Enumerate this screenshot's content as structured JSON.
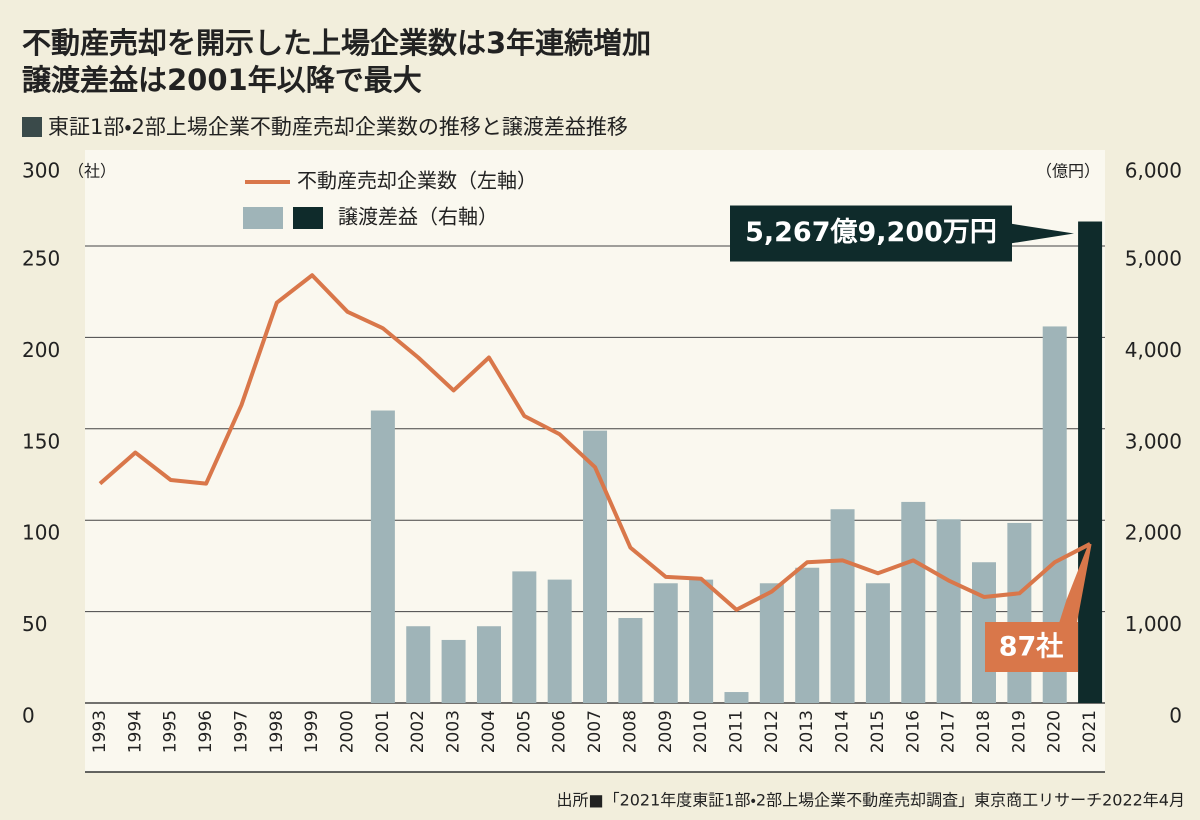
{
  "chart_data": {
    "type": "bar_line",
    "title": [
      "不動産売却を開示した上場企業数は3年連続増加",
      "譲渡差益は2001年以降で最大"
    ],
    "subtitle": "東証1部・2部上場企業不動産売却企業数の推移と譲渡差益推移",
    "y_unit": "（社）",
    "y2_unit": "（億円）",
    "source": "出所■「2021年度東証1部・2部上場企業不動産売却調査」東京商工リサーチ2022年4月",
    "categories": [
      "1993",
      "1994",
      "1995",
      "1996",
      "1997",
      "1998",
      "1999",
      "2000",
      "2001",
      "2002",
      "2003",
      "2004",
      "2005",
      "2006",
      "2007",
      "2008",
      "2009",
      "2010",
      "2011",
      "2012",
      "2013",
      "2014",
      "2015",
      "2016",
      "2017",
      "2018",
      "2019",
      "2020",
      "2021"
    ],
    "series": [
      {
        "name": "譲渡差益（右軸）",
        "type": "bar",
        "axis": "y2",
        "color": "#9fb4b8",
        "highlight_color": "#0f2b2b",
        "values": [
          null,
          null,
          null,
          null,
          null,
          null,
          null,
          null,
          3200,
          840,
          690,
          840,
          1440,
          1350,
          2980,
          930,
          1310,
          1350,
          120,
          1310,
          1480,
          2120,
          1310,
          2200,
          2010,
          1540,
          1970,
          4120,
          5267.92
        ],
        "value_labels": [
          null,
          null,
          null,
          null,
          null,
          null,
          null,
          null,
          null,
          null,
          null,
          null,
          null,
          null,
          null,
          null,
          null,
          null,
          null,
          null,
          null,
          null,
          null,
          null,
          null,
          null,
          null,
          null,
          "5,267億9,200万円"
        ]
      },
      {
        "name": "不動産売却企業数（左軸）",
        "type": "line",
        "color": "#d9774a",
        "values": [
          120,
          137,
          122,
          120,
          163,
          219,
          234,
          214,
          205,
          189,
          171,
          189,
          157,
          147,
          129,
          85,
          69,
          68,
          51,
          61,
          77,
          78,
          71,
          78,
          67,
          58,
          60,
          77,
          87
        ],
        "value_labels": [
          null,
          null,
          null,
          null,
          null,
          null,
          null,
          null,
          null,
          null,
          null,
          null,
          null,
          null,
          null,
          null,
          null,
          null,
          null,
          null,
          null,
          null,
          null,
          null,
          null,
          null,
          null,
          null,
          "87社"
        ]
      }
    ],
    "ylim": [
      0,
      300
    ],
    "yticks": [
      0,
      50,
      100,
      150,
      200,
      250,
      300
    ],
    "y2lim": [
      0,
      6000
    ],
    "y2ticks": [
      0,
      {
        "value": 1000,
        "label": "1,000"
      },
      {
        "value": 2000,
        "label": "2,000"
      },
      {
        "value": 3000,
        "label": "3,000"
      },
      {
        "value": 4000,
        "label": "4,000"
      },
      {
        "value": 5000,
        "label": "5,000"
      },
      {
        "value": 6000,
        "label": "6,000"
      }
    ],
    "grid": true
  }
}
